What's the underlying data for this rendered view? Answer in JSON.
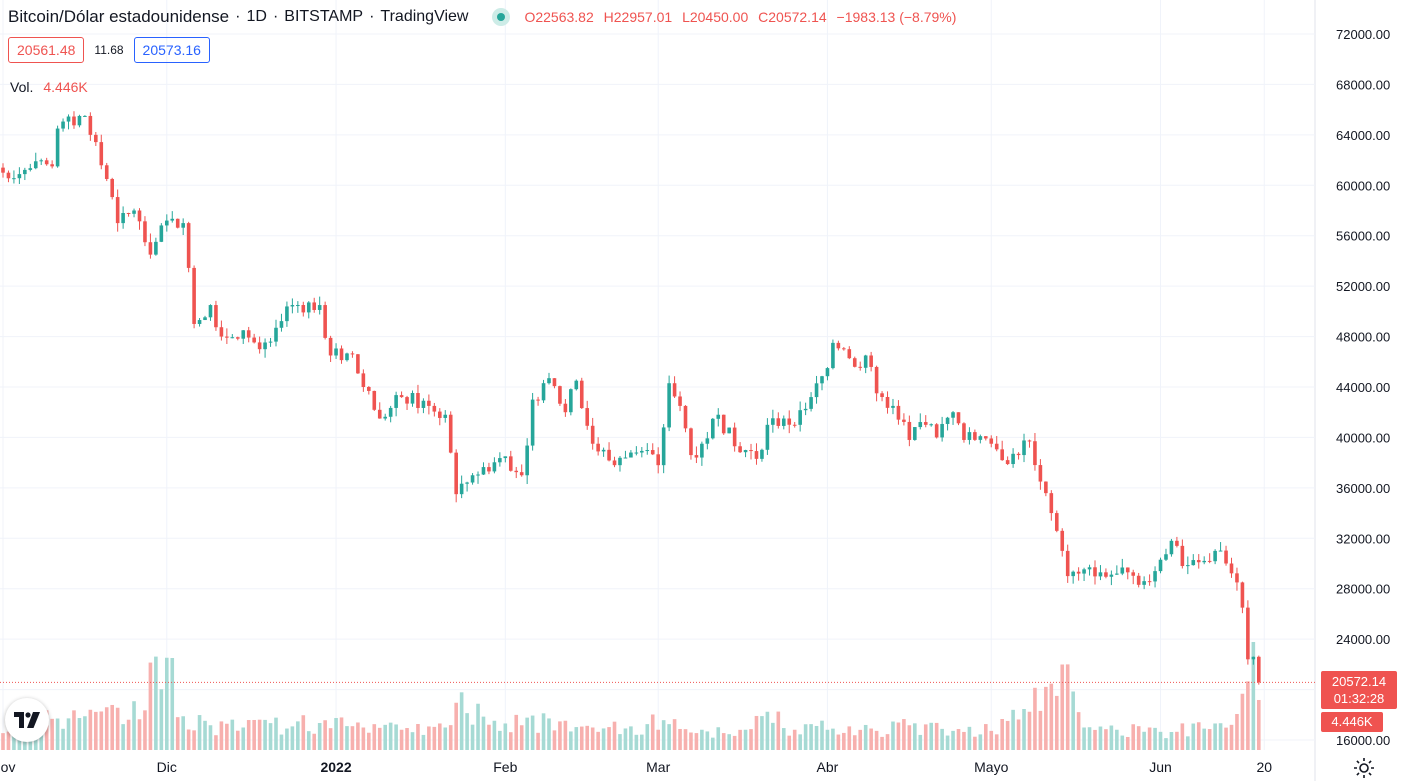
{
  "legend": {
    "symbol": "Bitcoin/Dólar estadounidense",
    "interval": "1D",
    "exchange": "BITSTAMP",
    "source": "TradingView",
    "sep": "·",
    "open": "O22563.82",
    "high": "H22957.01",
    "low": "L20450.00",
    "close": "C20572.14",
    "change": "−1983.13 (−8.79%)"
  },
  "quote": {
    "sell": "20561.48",
    "spread": "11.68",
    "buy": "20573.16"
  },
  "volume_legend": {
    "label": "Vol.",
    "value": "4.446K"
  },
  "price_scale": {
    "last_price": "20572.14",
    "countdown": "01:32:28",
    "last_volume": "4.446K"
  },
  "icons": {
    "logo": "tradingview-logo-icon",
    "settings": "gear-icon"
  },
  "colors": {
    "up": "#26a69a",
    "down": "#ef5350",
    "up_volume": "#a6dad4",
    "down_volume": "#f7b0ae",
    "text": "#131722",
    "grid": "#f0f3fa"
  },
  "chart_data": {
    "type": "candlestick",
    "interval": "1D",
    "period": "2021-11-01 to 2022-06-15",
    "ylim": [
      16000,
      72000
    ],
    "y_ticks": [
      72000,
      68000,
      64000,
      60000,
      56000,
      52000,
      48000,
      44000,
      40000,
      36000,
      32000,
      28000,
      24000,
      20000,
      16000
    ],
    "y_tick_labels": [
      "72000.00",
      "68000.00",
      "64000.00",
      "60000.00",
      "56000.00",
      "52000.00",
      "48000.00",
      "44000.00",
      "40000.00",
      "36000.00",
      "32000.00",
      "28000.00",
      "24000.00",
      "20000.00",
      "16000.00"
    ],
    "x_tick_labels": [
      {
        "label": "Nov",
        "index": 0
      },
      {
        "label": "Dic",
        "index": 30
      },
      {
        "label": "2022",
        "index": 61
      },
      {
        "label": "Feb",
        "index": 92
      },
      {
        "label": "Mar",
        "index": 120
      },
      {
        "label": "Abr",
        "index": 151
      },
      {
        "label": "Mayo",
        "index": 181
      },
      {
        "label": "Jun",
        "index": 212
      },
      {
        "label": "20",
        "index": 231
      }
    ],
    "grid": true,
    "last_price": 20572.14,
    "close_anchors": [
      [
        0,
        61000
      ],
      [
        9,
        61500
      ],
      [
        10,
        64500
      ],
      [
        15,
        65500
      ],
      [
        16,
        64000
      ],
      [
        19,
        60500
      ],
      [
        21,
        57000
      ],
      [
        24,
        58000
      ],
      [
        27,
        54500
      ],
      [
        30,
        57200
      ],
      [
        33,
        57000
      ],
      [
        35,
        49000
      ],
      [
        38,
        50500
      ],
      [
        40,
        48000
      ],
      [
        44,
        48500
      ],
      [
        47,
        47000
      ],
      [
        49,
        47600
      ],
      [
        53,
        50500
      ],
      [
        58,
        50500
      ],
      [
        60,
        46500
      ],
      [
        64,
        46600
      ],
      [
        66,
        44000
      ],
      [
        69,
        41500
      ],
      [
        73,
        43200
      ],
      [
        78,
        42500
      ],
      [
        81,
        41800
      ],
      [
        83,
        35500
      ],
      [
        86,
        37000
      ],
      [
        92,
        38500
      ],
      [
        95,
        37000
      ],
      [
        97,
        43000
      ],
      [
        100,
        44700
      ],
      [
        103,
        42000
      ],
      [
        105,
        44500
      ],
      [
        108,
        39500
      ],
      [
        112,
        37800
      ],
      [
        115,
        38800
      ],
      [
        118,
        39000
      ],
      [
        120,
        37800
      ],
      [
        122,
        44300
      ],
      [
        124,
        42500
      ],
      [
        126,
        38600
      ],
      [
        128,
        39500
      ],
      [
        131,
        41800
      ],
      [
        134,
        39300
      ],
      [
        136,
        39000
      ],
      [
        138,
        38300
      ],
      [
        140,
        41000
      ],
      [
        143,
        41500
      ],
      [
        145,
        41000
      ],
      [
        148,
        43200
      ],
      [
        151,
        45500
      ],
      [
        152,
        47500
      ],
      [
        154,
        47000
      ],
      [
        156,
        45600
      ],
      [
        158,
        46500
      ],
      [
        160,
        43500
      ],
      [
        163,
        42500
      ],
      [
        166,
        39800
      ],
      [
        169,
        41000
      ],
      [
        171,
        40000
      ],
      [
        174,
        42000
      ],
      [
        176,
        39800
      ],
      [
        179,
        40100
      ],
      [
        181,
        39500
      ],
      [
        183,
        38200
      ],
      [
        185,
        38700
      ],
      [
        188,
        39700
      ],
      [
        190,
        36500
      ],
      [
        192,
        34000
      ],
      [
        194,
        31000
      ],
      [
        195,
        29000
      ],
      [
        197,
        29200
      ],
      [
        199,
        29700
      ],
      [
        201,
        29300
      ],
      [
        204,
        29200
      ],
      [
        206,
        29300
      ],
      [
        209,
        28600
      ],
      [
        212,
        30300
      ],
      [
        214,
        31800
      ],
      [
        216,
        29800
      ],
      [
        219,
        30100
      ],
      [
        222,
        31000
      ],
      [
        224,
        30000
      ],
      [
        226,
        28500
      ],
      [
        227,
        26500
      ],
      [
        228,
        22400
      ],
      [
        229,
        22600
      ],
      [
        230,
        20572
      ]
    ],
    "volume_ylim": [
      0,
      12000
    ],
    "volume_anchors": [
      [
        0,
        1500
      ],
      [
        10,
        2800
      ],
      [
        15,
        3000
      ],
      [
        19,
        3800
      ],
      [
        22,
        2300
      ],
      [
        30,
        8200
      ],
      [
        33,
        3000
      ],
      [
        38,
        2200
      ],
      [
        44,
        2000
      ],
      [
        53,
        2100
      ],
      [
        58,
        2400
      ],
      [
        66,
        2000
      ],
      [
        73,
        1800
      ],
      [
        81,
        2000
      ],
      [
        83,
        4200
      ],
      [
        90,
        2600
      ],
      [
        95,
        2200
      ],
      [
        103,
        2600
      ],
      [
        108,
        2000
      ],
      [
        115,
        2100
      ],
      [
        118,
        2300
      ],
      [
        122,
        2300
      ],
      [
        128,
        1800
      ],
      [
        136,
        1800
      ],
      [
        140,
        3400
      ],
      [
        145,
        1800
      ],
      [
        152,
        1900
      ],
      [
        160,
        1700
      ],
      [
        166,
        2200
      ],
      [
        174,
        1700
      ],
      [
        181,
        1700
      ],
      [
        188,
        3400
      ],
      [
        192,
        5900
      ],
      [
        194,
        7600
      ],
      [
        196,
        5200
      ],
      [
        198,
        2000
      ],
      [
        204,
        1800
      ],
      [
        210,
        2000
      ],
      [
        214,
        1600
      ],
      [
        220,
        1900
      ],
      [
        226,
        3200
      ],
      [
        227,
        5000
      ],
      [
        228,
        6100
      ],
      [
        229,
        9600
      ],
      [
        230,
        4446
      ]
    ]
  }
}
